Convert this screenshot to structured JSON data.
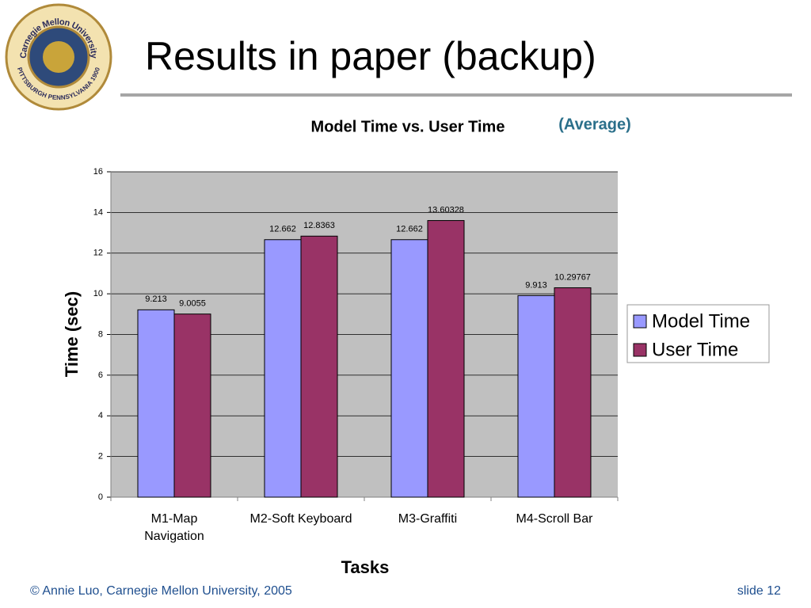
{
  "slide": {
    "title": "Results in paper (backup)",
    "footer": "© Annie Luo, Carnegie Mellon University, 2005",
    "slide_number": "slide 12",
    "logo": {
      "top_text": "Carnegie Mellon University",
      "bottom_text": "PITTSBURGH PENNSYLVANIA 1900"
    }
  },
  "chart_data": {
    "type": "bar",
    "title": "Model Time vs. User Time",
    "subtitle": "(Average)",
    "x_label": "Tasks",
    "y_label": "Time (sec)",
    "categories": [
      "M1-Map\nNavigation",
      "M2-Soft Keyboard",
      "M3-Graffiti",
      "M4-Scroll Bar"
    ],
    "series": [
      {
        "name": "Model Time",
        "color": "#9999ff",
        "values": [
          9.213,
          12.662,
          12.662,
          9.913
        ]
      },
      {
        "name": "User Time",
        "color": "#993366",
        "values": [
          9.0055,
          12.8363,
          13.60328,
          10.29767
        ]
      }
    ],
    "ylim": [
      0,
      16
    ],
    "yticks": [
      0,
      2,
      4,
      6,
      8,
      10,
      12,
      14,
      16
    ],
    "grid": true,
    "legend": "right"
  }
}
